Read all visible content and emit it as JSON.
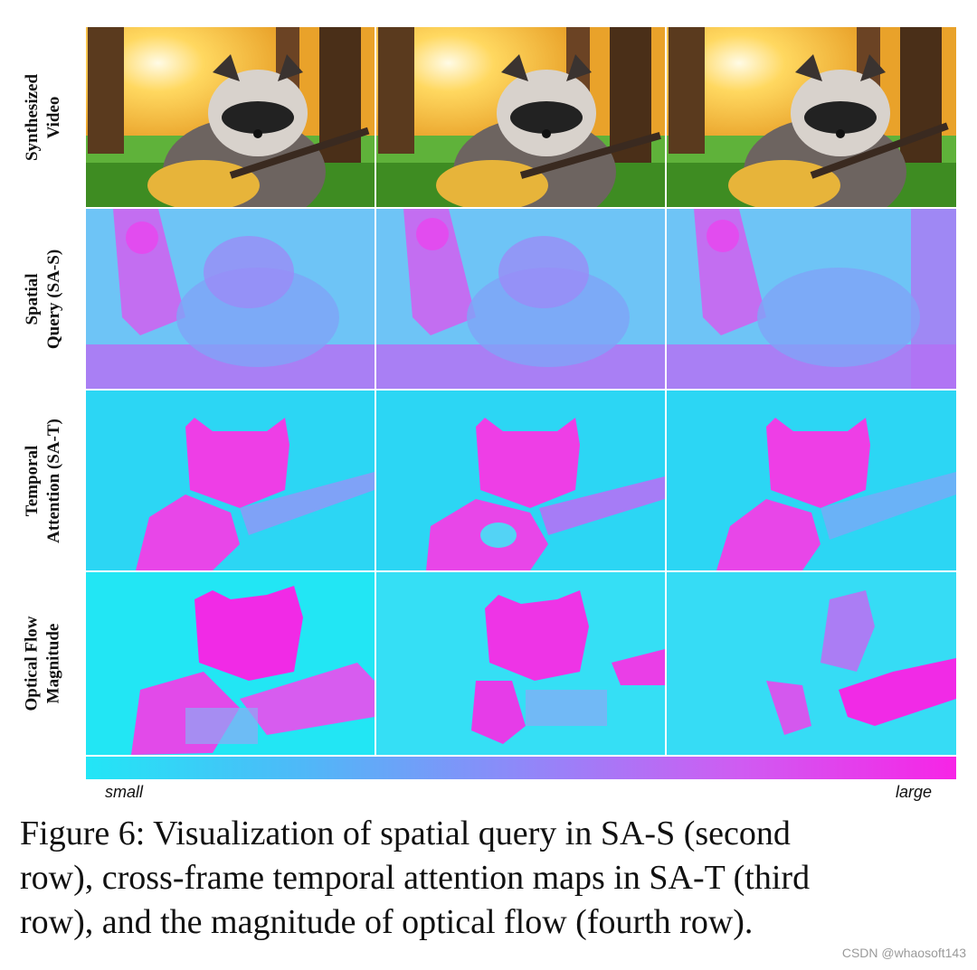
{
  "figure": {
    "rows": [
      {
        "id": "synth",
        "label_lines": [
          "Synthesized",
          "Video"
        ]
      },
      {
        "id": "sas",
        "label_lines": [
          "Spatial",
          "Query (SA-S)"
        ]
      },
      {
        "id": "sat",
        "label_lines": [
          "Temporal",
          "Attention (SA-T)"
        ]
      },
      {
        "id": "flow",
        "label_lines": [
          "Optical Flow",
          "Magnitude"
        ]
      }
    ],
    "frames_per_row": 3,
    "colorbar": {
      "min_label": "small",
      "max_label": "large",
      "low_color": "#22e6f6",
      "high_color": "#f724e6"
    }
  },
  "caption": {
    "lines": [
      "Figure 6: Visualization of spatial query in SA-S (second",
      "row), cross-frame temporal attention maps in SA-T (third",
      "row), and the magnitude of optical flow (fourth row)."
    ]
  },
  "watermark": "CSDN @whaosoft143"
}
